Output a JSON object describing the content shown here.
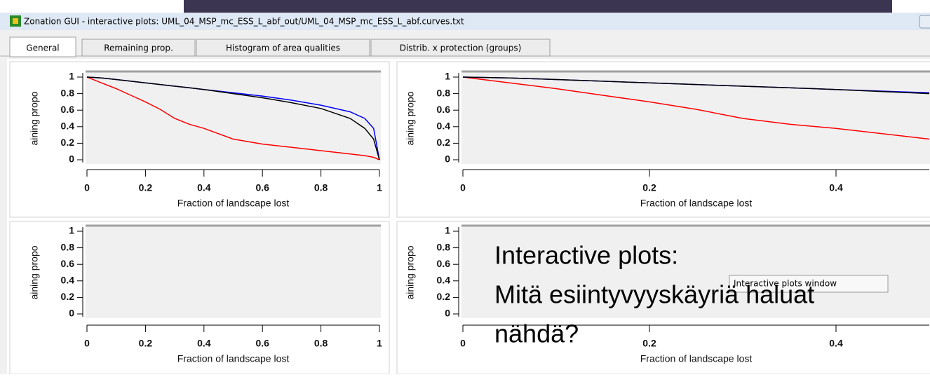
{
  "window": {
    "title": "Zonation GUI - interactive plots: UML_04_MSP_mc_ESS_L_abf_out/UML_04_MSP_mc_ESS_L_abf.curves.txt"
  },
  "tabs": [
    "General",
    "Remaining prop.",
    "Histogram of area qualities",
    "Distrib. x protection (groups)"
  ],
  "plots": [
    {
      "x_label": "Fraction of landscape lost",
      "y_label": "aining propo",
      "xlim": [
        0,
        1
      ],
      "ylim": [
        0,
        1
      ],
      "xticks": [
        0,
        0.2,
        0.4,
        0.6,
        0.8,
        1
      ],
      "yticks": [
        0,
        0.2,
        0.4,
        0.6,
        0.8,
        1
      ],
      "series": [
        {
          "color": "#ff0000",
          "x": [
            0,
            0.05,
            0.1,
            0.15,
            0.2,
            0.25,
            0.3,
            0.35,
            0.4,
            0.5,
            0.6,
            0.7,
            0.8,
            0.9,
            0.95,
            0.98,
            1
          ],
          "values": [
            1,
            0.93,
            0.86,
            0.78,
            0.7,
            0.61,
            0.5,
            0.43,
            0.38,
            0.25,
            0.19,
            0.15,
            0.11,
            0.07,
            0.05,
            0.03,
            0
          ]
        },
        {
          "color": "#0000ff",
          "x": [
            0,
            0.05,
            0.1,
            0.15,
            0.2,
            0.25,
            0.3,
            0.35,
            0.4,
            0.5,
            0.6,
            0.7,
            0.8,
            0.9,
            0.95,
            0.98,
            1
          ],
          "values": [
            1,
            0.99,
            0.97,
            0.95,
            0.93,
            0.91,
            0.89,
            0.87,
            0.85,
            0.81,
            0.77,
            0.72,
            0.66,
            0.58,
            0.5,
            0.38,
            0
          ]
        },
        {
          "color": "#000000",
          "x": [
            0,
            0.05,
            0.1,
            0.15,
            0.2,
            0.25,
            0.3,
            0.35,
            0.4,
            0.5,
            0.6,
            0.7,
            0.8,
            0.9,
            0.95,
            0.98,
            1
          ],
          "values": [
            1,
            0.99,
            0.97,
            0.95,
            0.93,
            0.91,
            0.89,
            0.87,
            0.85,
            0.8,
            0.75,
            0.69,
            0.62,
            0.5,
            0.38,
            0.25,
            0
          ]
        }
      ]
    },
    {
      "x_label": "Fraction of landscape lost",
      "y_label": "aining propo",
      "xlim": [
        0,
        0.5
      ],
      "ylim": [
        0,
        1
      ],
      "xticks": [
        0,
        0.2,
        0.4
      ],
      "yticks": [
        0,
        0.2,
        0.4,
        0.6,
        0.8,
        1
      ],
      "series": [
        {
          "color": "#ff0000",
          "x": [
            0,
            0.05,
            0.1,
            0.15,
            0.2,
            0.25,
            0.3,
            0.35,
            0.4,
            0.5
          ],
          "values": [
            1,
            0.93,
            0.86,
            0.78,
            0.7,
            0.61,
            0.5,
            0.43,
            0.38,
            0.25
          ]
        },
        {
          "color": "#0000ff",
          "x": [
            0,
            0.05,
            0.1,
            0.15,
            0.2,
            0.25,
            0.3,
            0.35,
            0.4,
            0.5
          ],
          "values": [
            1,
            0.99,
            0.97,
            0.95,
            0.93,
            0.91,
            0.89,
            0.87,
            0.85,
            0.81
          ]
        },
        {
          "color": "#000000",
          "x": [
            0,
            0.05,
            0.1,
            0.15,
            0.2,
            0.25,
            0.3,
            0.35,
            0.4,
            0.5
          ],
          "values": [
            1,
            0.99,
            0.97,
            0.95,
            0.93,
            0.91,
            0.89,
            0.87,
            0.85,
            0.8
          ]
        }
      ]
    },
    {
      "x_label": "Fraction of landscape lost",
      "y_label": "aining propo",
      "xlim": [
        0,
        1
      ],
      "ylim": [
        0,
        1
      ],
      "xticks": [
        0,
        0.2,
        0.4,
        0.6,
        0.8,
        1
      ],
      "yticks": [
        0,
        0.2,
        0.4,
        0.6,
        0.8,
        1
      ],
      "series": []
    },
    {
      "x_label": "Fraction of landscape lost",
      "y_label": "aining propo",
      "xlim": [
        0,
        0.5
      ],
      "ylim": [
        0,
        1
      ],
      "xticks": [
        0,
        0.2,
        0.4
      ],
      "yticks": [
        0,
        0.2,
        0.4,
        0.6,
        0.8,
        1
      ],
      "series": []
    }
  ],
  "overlay": {
    "lines": [
      "Interactive plots:",
      "Mitä esiintyvyyskäyriä haluat",
      "nähdä?"
    ]
  },
  "tooltip": "Interactive plots window"
}
